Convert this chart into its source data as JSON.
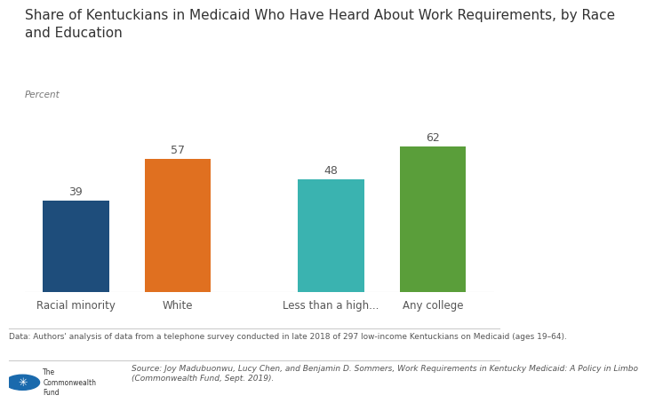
{
  "title": "Share of Kentuckians in Medicaid Who Have Heard About Work Requirements, by Race\nand Education",
  "ylabel": "Percent",
  "categories": [
    "Racial minority",
    "White",
    "Less than a high...",
    "Any college"
  ],
  "values": [
    39,
    57,
    48,
    62
  ],
  "bar_colors": [
    "#1e4d7b",
    "#e07020",
    "#3ab3b0",
    "#5a9e3a"
  ],
  "bar_positions": [
    0.5,
    1.5,
    3.0,
    4.0
  ],
  "bar_width": 0.65,
  "xlim": [
    0.0,
    4.6
  ],
  "ylim": [
    0,
    80
  ],
  "footnote": "Data: Authors' analysis of data from a telephone survey conducted in late 2018 of 297 low-income Kentuckians on Medicaid (ages 19–64).",
  "source_text": "Source: Joy Madubuonwu, Lucy Chen, and Benjamin D. Sommers, Work Requirements in Kentucky Medicaid: A Policy in Limbo\n(Commonwealth Fund, Sept. 2019).",
  "title_fontsize": 11,
  "label_fontsize": 8.5,
  "value_fontsize": 9,
  "footnote_fontsize": 6.5,
  "source_fontsize": 6.5,
  "background_color": "#ffffff",
  "tick_label_color": "#555555",
  "value_label_color": "#555555",
  "footnote_color": "#555555",
  "source_color": "#555555",
  "title_color": "#333333",
  "percent_color": "#777777",
  "line_color": "#cccccc",
  "logo_circle_color": "#1a6aad"
}
